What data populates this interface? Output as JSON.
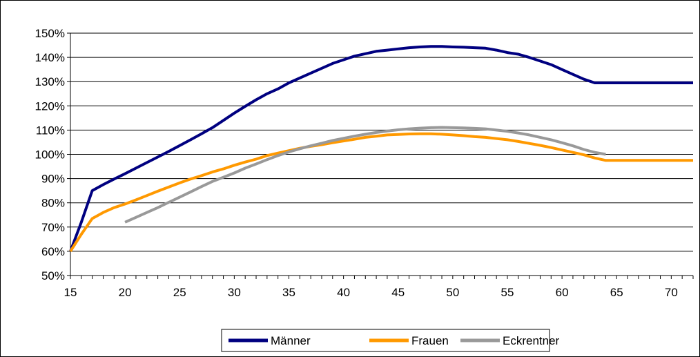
{
  "chart_data": {
    "type": "line",
    "title": "",
    "xlabel": "",
    "ylabel": "",
    "xlim": [
      15,
      72
    ],
    "ylim": [
      50,
      150
    ],
    "x_ticks": [
      15,
      20,
      25,
      30,
      35,
      40,
      45,
      50,
      55,
      60,
      65,
      70
    ],
    "y_ticks": [
      50,
      60,
      70,
      80,
      90,
      100,
      110,
      120,
      130,
      140,
      150
    ],
    "y_tick_labels": [
      "50%",
      "60%",
      "70%",
      "80%",
      "90%",
      "100%",
      "110%",
      "120%",
      "130%",
      "140%",
      "150%"
    ],
    "y_unit": "%",
    "grid": "horizontal",
    "legend_position": "bottom",
    "series": [
      {
        "name": "Männer",
        "color": "#000080",
        "x": [
          15,
          16,
          17,
          18,
          19,
          20,
          21,
          22,
          23,
          24,
          25,
          26,
          27,
          28,
          29,
          30,
          31,
          32,
          33,
          34,
          35,
          36,
          37,
          38,
          39,
          40,
          41,
          42,
          43,
          44,
          45,
          46,
          47,
          48,
          49,
          50,
          51,
          52,
          53,
          54,
          55,
          56,
          57,
          58,
          59,
          60,
          61,
          62,
          63,
          64,
          65,
          66,
          67,
          68,
          69,
          70,
          71,
          72
        ],
        "y": [
          60,
          72,
          85,
          87.5,
          89.8,
          92,
          94.3,
          96.6,
          98.9,
          101.2,
          103.6,
          106,
          108.5,
          111,
          114,
          117,
          119.8,
          122.5,
          125,
          127,
          129.5,
          131.5,
          133.5,
          135.5,
          137.5,
          139,
          140.5,
          141.5,
          142.5,
          143,
          143.5,
          144,
          144.3,
          144.5,
          144.5,
          144.3,
          144.2,
          144,
          143.8,
          143,
          142,
          141.3,
          140,
          138.5,
          137,
          135,
          133,
          131,
          129.5,
          129.5,
          129.5,
          129.5,
          129.5,
          129.5,
          129.5,
          129.5,
          129.5,
          129.5
        ]
      },
      {
        "name": "Frauen",
        "color": "#FF9900",
        "x": [
          15,
          16,
          17,
          18,
          19,
          20,
          21,
          22,
          23,
          24,
          25,
          26,
          27,
          28,
          29,
          30,
          31,
          32,
          33,
          34,
          35,
          36,
          37,
          38,
          39,
          40,
          41,
          42,
          43,
          44,
          45,
          46,
          47,
          48,
          49,
          50,
          51,
          52,
          53,
          54,
          55,
          56,
          57,
          58,
          59,
          60,
          61,
          62,
          63,
          64,
          65,
          66,
          67,
          68,
          69,
          70,
          71,
          72
        ],
        "y": [
          60,
          67,
          73.5,
          76,
          78,
          79.5,
          81.2,
          83,
          84.8,
          86.5,
          88.2,
          89.8,
          91.2,
          92.7,
          94,
          95.5,
          96.8,
          98,
          99.5,
          100.5,
          101.5,
          102.5,
          103.3,
          104,
          104.8,
          105.5,
          106.2,
          107,
          107.5,
          108,
          108.2,
          108.4,
          108.5,
          108.5,
          108.3,
          108,
          107.7,
          107.3,
          107,
          106.5,
          106,
          105.3,
          104.5,
          103.7,
          102.8,
          101.8,
          100.8,
          99.8,
          98.5,
          97.5,
          97.5,
          97.5,
          97.5,
          97.5,
          97.5,
          97.5,
          97.5,
          97.5
        ]
      },
      {
        "name": "Eckrentner",
        "color": "#999999",
        "x": [
          20,
          21,
          22,
          23,
          24,
          25,
          26,
          27,
          28,
          29,
          30,
          31,
          32,
          33,
          34,
          35,
          36,
          37,
          38,
          39,
          40,
          41,
          42,
          43,
          44,
          45,
          46,
          47,
          48,
          49,
          50,
          51,
          52,
          53,
          54,
          55,
          56,
          57,
          58,
          59,
          60,
          61,
          62,
          63,
          64
        ],
        "y": [
          72,
          74,
          76,
          78,
          80.2,
          82.3,
          84.5,
          86.7,
          88.8,
          90.5,
          92.3,
          94.3,
          96,
          97.8,
          99.5,
          101,
          102.3,
          103.5,
          104.6,
          105.7,
          106.6,
          107.5,
          108.3,
          109,
          109.6,
          110.1,
          110.5,
          110.8,
          111,
          111.1,
          111,
          110.9,
          110.7,
          110.5,
          110,
          109.5,
          108.8,
          108,
          107,
          106,
          104.8,
          103.5,
          102,
          100.8,
          100
        ]
      }
    ]
  }
}
